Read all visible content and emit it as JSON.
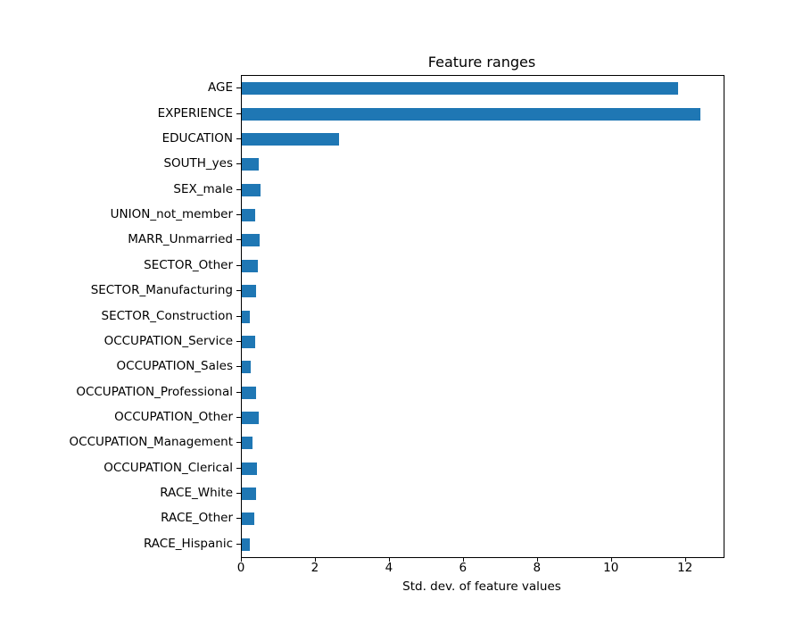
{
  "title": "Feature ranges",
  "chart_data": {
    "type": "bar",
    "orientation": "horizontal",
    "title": "Feature ranges",
    "xlabel": "Std. dev. of feature values",
    "ylabel": "",
    "categories": [
      "AGE",
      "EXPERIENCE",
      "EDUCATION",
      "SOUTH_yes",
      "SEX_male",
      "UNION_not_member",
      "MARR_Unmarried",
      "SECTOR_Other",
      "SECTOR_Manufacturing",
      "SECTOR_Construction",
      "OCCUPATION_Service",
      "OCCUPATION_Sales",
      "OCCUPATION_Professional",
      "OCCUPATION_Other",
      "OCCUPATION_Management",
      "OCCUPATION_Clerical",
      "RACE_White",
      "RACE_Other",
      "RACE_Hispanic"
    ],
    "values": [
      11.8,
      12.4,
      2.63,
      0.45,
      0.51,
      0.37,
      0.48,
      0.43,
      0.39,
      0.22,
      0.35,
      0.23,
      0.39,
      0.46,
      0.29,
      0.41,
      0.38,
      0.33,
      0.22
    ],
    "xlim": [
      0,
      13.02
    ],
    "xticks": [
      0,
      2,
      4,
      6,
      8,
      10,
      12
    ],
    "grid": false,
    "legend_position": "none",
    "bar_color": "#1f77b4",
    "axis_color": "#000000",
    "background_color": "#ffffff"
  }
}
